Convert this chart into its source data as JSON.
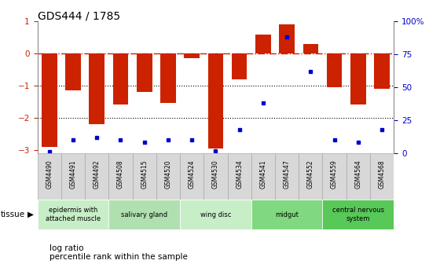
{
  "title": "GDS444 / 1785",
  "samples": [
    "GSM4490",
    "GSM4491",
    "GSM4492",
    "GSM4508",
    "GSM4515",
    "GSM4520",
    "GSM4524",
    "GSM4530",
    "GSM4534",
    "GSM4541",
    "GSM4547",
    "GSM4552",
    "GSM4559",
    "GSM4564",
    "GSM4568"
  ],
  "log_ratio": [
    -2.9,
    -1.15,
    -2.2,
    -1.6,
    -1.2,
    -1.55,
    -0.15,
    -2.95,
    -0.8,
    0.57,
    0.9,
    0.3,
    -1.05,
    -1.6,
    -1.1
  ],
  "percentile": [
    1,
    10,
    12,
    10,
    8,
    10,
    10,
    2,
    18,
    38,
    88,
    62,
    10,
    8,
    18
  ],
  "tissue_groups": [
    {
      "label": "epidermis with\nattached muscle",
      "start": 0,
      "end": 3,
      "color": "#c8eec8"
    },
    {
      "label": "salivary gland",
      "start": 3,
      "end": 6,
      "color": "#b0e0b0"
    },
    {
      "label": "wing disc",
      "start": 6,
      "end": 9,
      "color": "#c8eec8"
    },
    {
      "label": "midgut",
      "start": 9,
      "end": 12,
      "color": "#80d880"
    },
    {
      "label": "central nervous\nsystem",
      "start": 12,
      "end": 15,
      "color": "#58c858"
    }
  ],
  "bar_color": "#cc2200",
  "dot_color": "#0000cc",
  "ylim": [
    -3.1,
    1.0
  ],
  "y2lim": [
    0,
    100
  ],
  "dotted_lines": [
    -1.0,
    -2.0
  ],
  "left_yticks": [
    1,
    0,
    -1,
    -2,
    -3
  ],
  "right_yticks": [
    100,
    75,
    50,
    25,
    0
  ],
  "right_tick_labels": [
    "100%",
    "75",
    "50",
    "25",
    "0"
  ]
}
